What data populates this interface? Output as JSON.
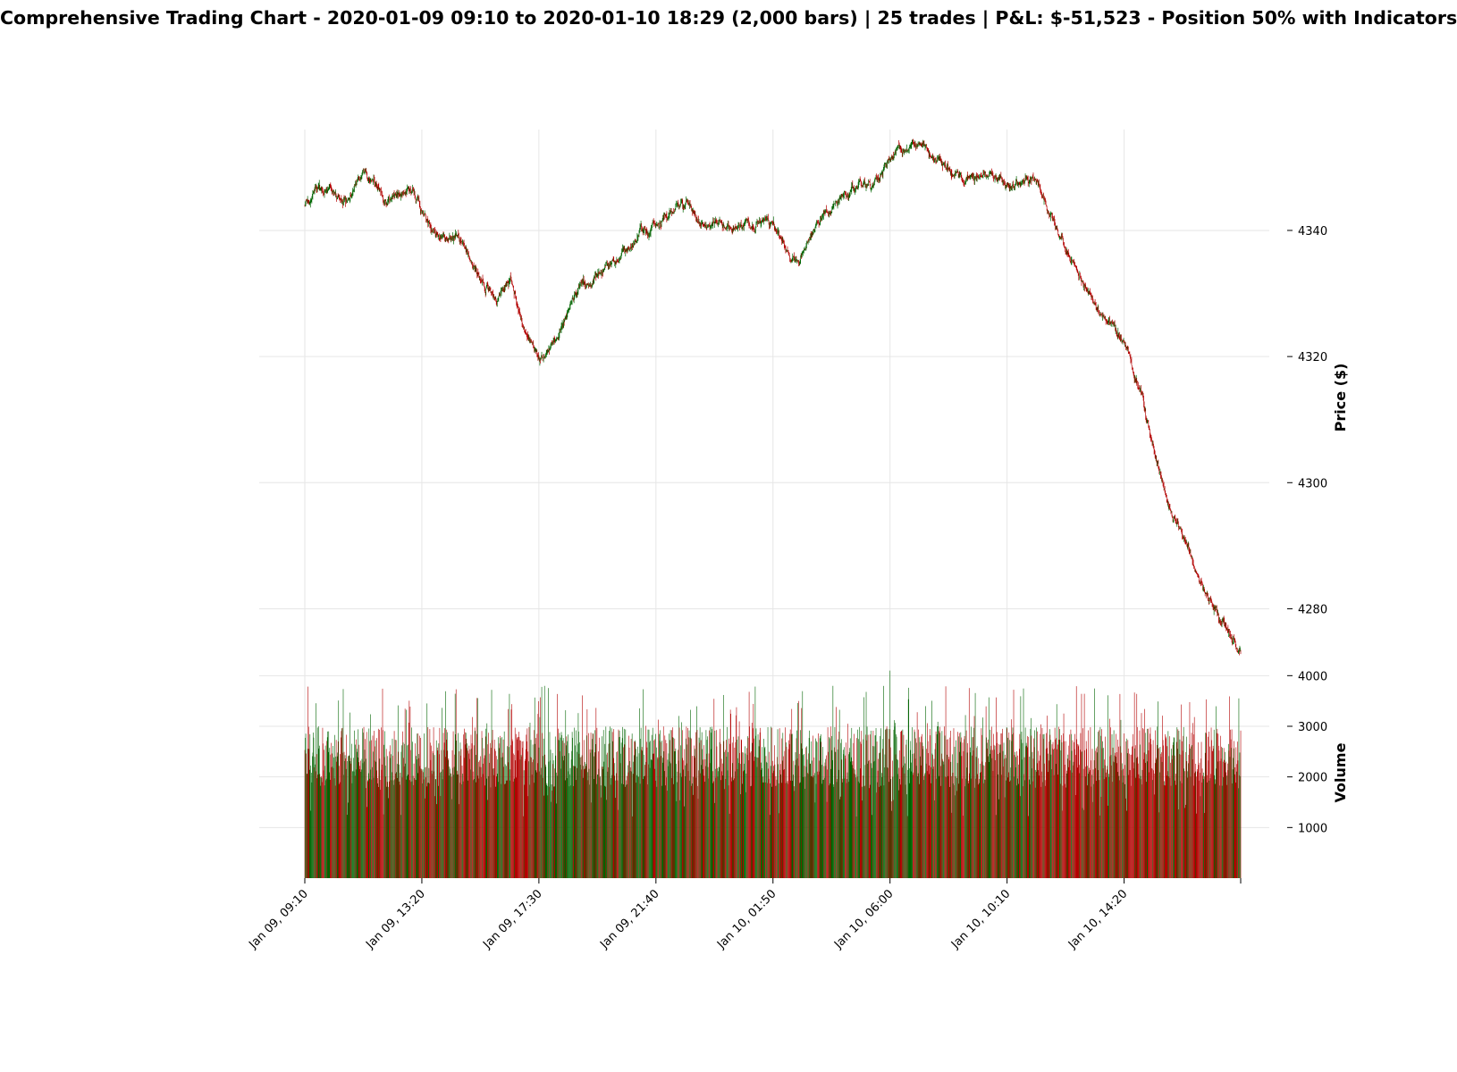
{
  "chart_data": {
    "type": "candlestick",
    "title": "Comprehensive Trading Chart - 2020-01-09 09:10 to 2020-01-10 18:29 (2,000 bars) | 25 trades | P&L: $-51,523  - Position 50% with Indicators",
    "bars": 2000,
    "start_time": "2020-01-09 09:10",
    "end_time": "2020-01-10 18:29",
    "colors": {
      "up": "#006400",
      "down": "#b30000",
      "grid": "#e6e6e6"
    },
    "price_panel": {
      "ylabel": "Price ($)",
      "ylim": [
        4271,
        4356
      ],
      "yticks": [
        4280,
        4300,
        4320,
        4340
      ],
      "grid": true,
      "close_path": [
        {
          "t": "Jan 09, 09:10",
          "p": 4344
        },
        {
          "t": "Jan 09, 09:40",
          "p": 4347
        },
        {
          "t": "Jan 09, 10:40",
          "p": 4345
        },
        {
          "t": "Jan 09, 11:20",
          "p": 4350
        },
        {
          "t": "Jan 09, 12:00",
          "p": 4345
        },
        {
          "t": "Jan 09, 13:00",
          "p": 4346
        },
        {
          "t": "Jan 09, 13:40",
          "p": 4340
        },
        {
          "t": "Jan 09, 14:40",
          "p": 4338
        },
        {
          "t": "Jan 09, 16:00",
          "p": 4329
        },
        {
          "t": "Jan 09, 16:30",
          "p": 4332
        },
        {
          "t": "Jan 09, 17:00",
          "p": 4324
        },
        {
          "t": "Jan 09, 17:30",
          "p": 4320
        },
        {
          "t": "Jan 09, 18:00",
          "p": 4322
        },
        {
          "t": "Jan 09, 19:00",
          "p": 4331
        },
        {
          "t": "Jan 09, 20:00",
          "p": 4334
        },
        {
          "t": "Jan 09, 21:20",
          "p": 4340
        },
        {
          "t": "Jan 09, 22:40",
          "p": 4344
        },
        {
          "t": "Jan 09, 23:30",
          "p": 4341
        },
        {
          "t": "Jan 10, 00:30",
          "p": 4341
        },
        {
          "t": "Jan 10, 01:50",
          "p": 4341
        },
        {
          "t": "Jan 10, 02:40",
          "p": 4334
        },
        {
          "t": "Jan 10, 03:20",
          "p": 4340
        },
        {
          "t": "Jan 10, 04:20",
          "p": 4346
        },
        {
          "t": "Jan 10, 05:10",
          "p": 4347
        },
        {
          "t": "Jan 10, 06:10",
          "p": 4352
        },
        {
          "t": "Jan 10, 07:00",
          "p": 4354
        },
        {
          "t": "Jan 10, 08:00",
          "p": 4350
        },
        {
          "t": "Jan 10, 08:40",
          "p": 4348
        },
        {
          "t": "Jan 10, 09:40",
          "p": 4349
        },
        {
          "t": "Jan 10, 10:10",
          "p": 4347
        },
        {
          "t": "Jan 10, 11:10",
          "p": 4348
        },
        {
          "t": "Jan 10, 11:40",
          "p": 4343
        },
        {
          "t": "Jan 10, 12:40",
          "p": 4333
        },
        {
          "t": "Jan 10, 13:20",
          "p": 4328
        },
        {
          "t": "Jan 10, 14:20",
          "p": 4322
        },
        {
          "t": "Jan 10, 15:00",
          "p": 4313
        },
        {
          "t": "Jan 10, 15:40",
          "p": 4300
        },
        {
          "t": "Jan 10, 16:20",
          "p": 4292
        },
        {
          "t": "Jan 10, 17:00",
          "p": 4285
        },
        {
          "t": "Jan 10, 17:40",
          "p": 4279
        },
        {
          "t": "Jan 10, 18:29",
          "p": 4273
        }
      ]
    },
    "volume_panel": {
      "ylabel": "Volume",
      "ylim": [
        0,
        4200
      ],
      "yticks": [
        1000,
        2000,
        3000,
        4000
      ],
      "grid": true,
      "typical_range": [
        1800,
        3000
      ],
      "max": 4100
    },
    "x_axis": {
      "tick_labels": [
        "Jan 09, 09:10",
        "Jan 09, 13:20",
        "Jan 09, 17:30",
        "Jan 09, 21:40",
        "Jan 10, 01:50",
        "Jan 10, 06:00",
        "Jan 10, 10:10",
        "Jan 10, 14:20"
      ],
      "range": [
        "Jan 09, 09:10",
        "Jan 10, 18:29"
      ]
    }
  }
}
